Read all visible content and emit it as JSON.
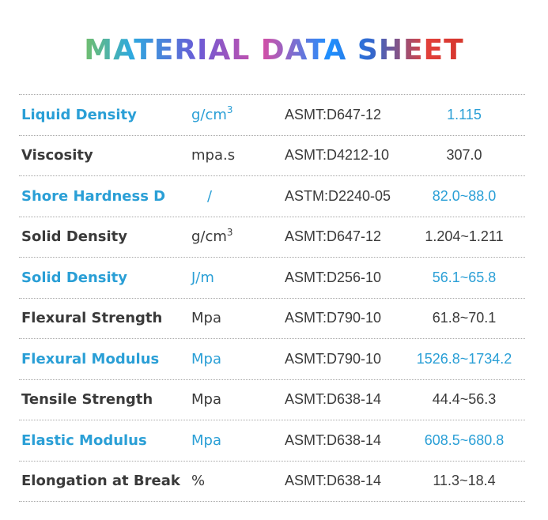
{
  "title": "MATERIAL DATA SHEET",
  "accent_color": "#2a9fd6",
  "text_color": "#3a3a3a",
  "rows": [
    {
      "name": "Liquid Density",
      "unit": "g/cm",
      "unit_sup": "3",
      "standard": "ASMT:D647-12",
      "value": "1.115",
      "highlight": true
    },
    {
      "name": "Viscosity",
      "unit": "mpa.s",
      "unit_sup": "",
      "standard": "ASMT:D4212-10",
      "value": "307.0",
      "highlight": false
    },
    {
      "name": "Shore Hardness D",
      "unit": "/",
      "unit_sup": "",
      "standard": "ASTM:D2240-05",
      "value": "82.0~88.0",
      "highlight": true
    },
    {
      "name": "Solid Density",
      "unit": "g/cm",
      "unit_sup": "3",
      "standard": "ASMT:D647-12",
      "value": "1.204~1.211",
      "highlight": false
    },
    {
      "name": "Solid Density",
      "unit": "J/m",
      "unit_sup": "",
      "standard": "ASMT:D256-10",
      "value": "56.1~65.8",
      "highlight": true
    },
    {
      "name": "Flexural Strength",
      "unit": "Mpa",
      "unit_sup": "",
      "standard": "ASMT:D790-10",
      "value": "61.8~70.1",
      "highlight": false
    },
    {
      "name": "Flexural Modulus",
      "unit": "Mpa",
      "unit_sup": "",
      "standard": "ASMT:D790-10",
      "value": "1526.8~1734.2",
      "highlight": true
    },
    {
      "name": "Tensile Strength",
      "unit": "Mpa",
      "unit_sup": "",
      "standard": "ASMT:D638-14",
      "value": "44.4~56.3",
      "highlight": false
    },
    {
      "name": "Elastic Modulus",
      "unit": "Mpa",
      "unit_sup": "",
      "standard": "ASMT:D638-14",
      "value": "608.5~680.8",
      "highlight": true
    },
    {
      "name": "Elongation at Break",
      "unit": "%",
      "unit_sup": "",
      "standard": "ASMT:D638-14",
      "value": "11.3~18.4",
      "highlight": false
    }
  ]
}
